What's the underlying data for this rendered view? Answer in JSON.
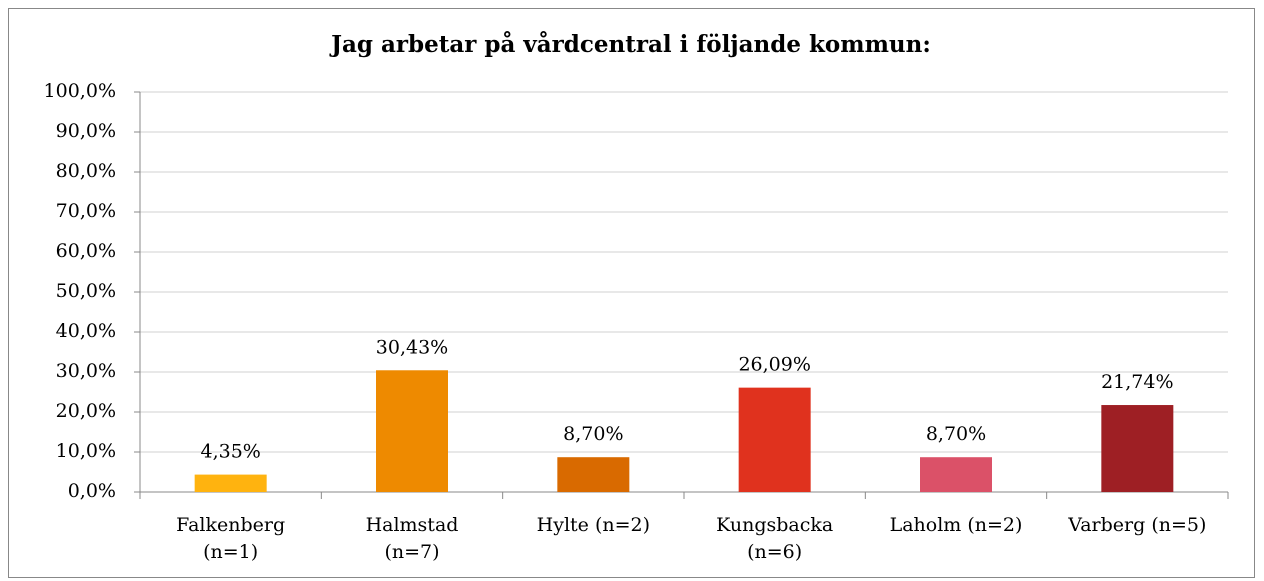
{
  "chart_data": {
    "type": "bar",
    "title": "Jag arbetar på vårdcentral i följande kommun:",
    "categories": [
      "Falkenberg\n(n=1)",
      "Halmstad\n(n=7)",
      "Hylte (n=2)",
      "Kungsbacka\n(n=6)",
      "Laholm (n=2)",
      "Varberg (n=5)"
    ],
    "values": [
      4.35,
      30.43,
      8.7,
      26.09,
      8.7,
      21.74
    ],
    "value_labels": [
      "4,35%",
      "30,43%",
      "8,70%",
      "26,09%",
      "8,70%",
      "21,74%"
    ],
    "colors": [
      "#ffb30f",
      "#ee8a00",
      "#d96a00",
      "#e0321e",
      "#db5168",
      "#9e1f24"
    ],
    "ylim": [
      0,
      100
    ],
    "yticks": [
      {
        "value": 0,
        "label": "0,0%"
      },
      {
        "value": 10,
        "label": "10,0%"
      },
      {
        "value": 20,
        "label": "20,0%"
      },
      {
        "value": 30,
        "label": "30,0%"
      },
      {
        "value": 40,
        "label": "40,0%"
      },
      {
        "value": 50,
        "label": "50,0%"
      },
      {
        "value": 60,
        "label": "60,0%"
      },
      {
        "value": 70,
        "label": "70,0%"
      },
      {
        "value": 80,
        "label": "80,0%"
      },
      {
        "value": 90,
        "label": "90,0%"
      },
      {
        "value": 100,
        "label": "100,0%"
      }
    ],
    "grid": true
  }
}
